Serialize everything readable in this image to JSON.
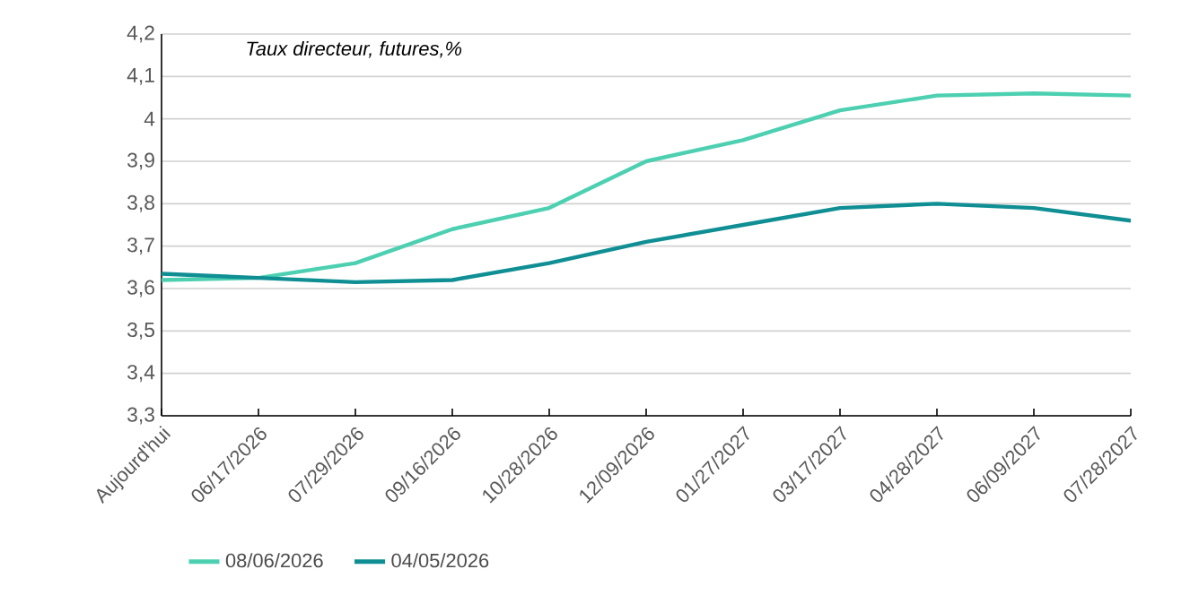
{
  "chart_data": {
    "type": "line",
    "title": "Taux directeur, futures,%",
    "categories": [
      "Aujourd'hui",
      "06/17/2026",
      "07/29/2026",
      "09/16/2026",
      "10/28/2026",
      "12/09/2026",
      "01/27/2027",
      "03/17/2027",
      "04/28/2027",
      "06/09/2027",
      "07/28/2027"
    ],
    "series": [
      {
        "name": "08/06/2026",
        "color": "#4dd0b1",
        "values": [
          3.62,
          3.625,
          3.66,
          3.74,
          3.79,
          3.9,
          3.95,
          4.02,
          4.055,
          4.06,
          4.055
        ]
      },
      {
        "name": "04/05/2026",
        "color": "#0f8f94",
        "values": [
          3.635,
          3.625,
          3.615,
          3.62,
          3.66,
          3.71,
          3.75,
          3.79,
          3.8,
          3.79,
          3.76
        ]
      }
    ],
    "ylim": [
      3.3,
      4.2
    ],
    "yticks": [
      {
        "value": 3.3,
        "label": "3,3"
      },
      {
        "value": 3.4,
        "label": "3,4"
      },
      {
        "value": 3.5,
        "label": "3,5"
      },
      {
        "value": 3.6,
        "label": "3,6"
      },
      {
        "value": 3.7,
        "label": "3,7"
      },
      {
        "value": 3.8,
        "label": "3,8"
      },
      {
        "value": 3.9,
        "label": "3,9"
      },
      {
        "value": 4,
        "label": "4"
      },
      {
        "value": 4.1,
        "label": "4,1"
      },
      {
        "value": 4.2,
        "label": "4,2"
      }
    ],
    "grid": "y",
    "legend": "bottom",
    "marker": "none",
    "line_style": "solid"
  }
}
